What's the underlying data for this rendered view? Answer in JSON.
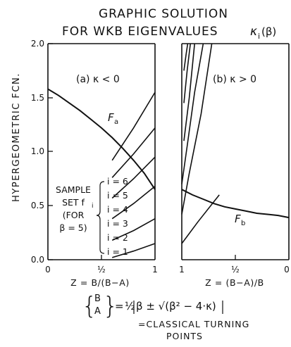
{
  "title": {
    "line1": "GRAPHIC SOLUTION",
    "line2": "FOR WKB EIGENVALUES",
    "kappa_label": "κ",
    "kappa_sub": "i",
    "kappa_arg": "(β)"
  },
  "formula": {
    "lhs_top": "B",
    "lhs_bottom": "A",
    "equals": "=",
    "half": "½",
    "rhs": "β ± √(β² − 4·κ)",
    "caption_line1": "=CLASSICAL TURNING",
    "caption_line2": "POINTS"
  },
  "chart_data": [
    {
      "type": "line",
      "panel_label": "(a) κ < 0",
      "ylabel": "HYPERGEOMETRIC FCN.",
      "xlabel": "Z = B/(B−A)",
      "xlim": [
        0,
        1
      ],
      "ylim": [
        0,
        2.0
      ],
      "x_ticks": [
        "0",
        "½",
        "1"
      ],
      "y_ticks": [
        "0.0",
        "0.5",
        "1.0",
        "1.5",
        "2.0"
      ],
      "grid": false,
      "main_curve": {
        "name": "Fa",
        "label": "F",
        "label_sub": "a",
        "x": [
          0.0,
          0.1,
          0.2,
          0.3,
          0.4,
          0.5,
          0.6,
          0.7,
          0.8,
          0.9,
          1.0
        ],
        "y": [
          1.58,
          1.52,
          1.45,
          1.38,
          1.3,
          1.22,
          1.13,
          1.03,
          0.92,
          0.8,
          0.65
        ]
      },
      "sample_set": {
        "label_lines": [
          "SAMPLE",
          "SET f",
          "(FOR",
          "β = 5)"
        ],
        "label_sub": "i",
        "series": [
          {
            "name": "i = 1",
            "x": [
              0.6,
              0.8,
              1.0
            ],
            "y": [
              0.02,
              0.08,
              0.15
            ]
          },
          {
            "name": "i = 2",
            "x": [
              0.6,
              0.8,
              1.0
            ],
            "y": [
              0.18,
              0.27,
              0.38
            ]
          },
          {
            "name": "i = 3",
            "x": [
              0.6,
              0.8,
              1.0
            ],
            "y": [
              0.38,
              0.52,
              0.68
            ]
          },
          {
            "name": "i = 4",
            "x": [
              0.6,
              0.8,
              1.0
            ],
            "y": [
              0.57,
              0.75,
              0.95
            ]
          },
          {
            "name": "i = 5",
            "x": [
              0.6,
              0.8,
              1.0
            ],
            "y": [
              0.76,
              0.98,
              1.22
            ]
          },
          {
            "name": "i = 6",
            "x": [
              0.6,
              0.8,
              1.0
            ],
            "y": [
              0.92,
              1.22,
              1.55
            ]
          }
        ]
      }
    },
    {
      "type": "line",
      "panel_label": "(b) κ > 0",
      "xlabel": "Z = (B−A)/B",
      "xlim": [
        1,
        0
      ],
      "ylim": [
        0,
        2.0
      ],
      "x_ticks": [
        "1",
        "½",
        "0"
      ],
      "grid": false,
      "main_curve": {
        "name": "Fb",
        "label": "F",
        "label_sub": "b",
        "x": [
          1.0,
          0.9,
          0.8,
          0.7,
          0.6,
          0.5,
          0.4,
          0.3,
          0.2,
          0.1,
          0.0
        ],
        "y": [
          0.65,
          0.6,
          0.56,
          0.52,
          0.49,
          0.47,
          0.45,
          0.43,
          0.42,
          0.41,
          0.39
        ]
      },
      "series": [
        {
          "x": [
            1.0,
            0.85,
            0.65
          ],
          "y": [
            0.15,
            0.35,
            0.6
          ]
        },
        {
          "x": [
            1.0,
            0.93,
            0.82,
            0.72
          ],
          "y": [
            0.42,
            0.8,
            1.35,
            2.0
          ]
        },
        {
          "x": [
            1.0,
            0.95,
            0.88,
            0.8
          ],
          "y": [
            0.7,
            1.05,
            1.55,
            2.0
          ]
        },
        {
          "x": [
            0.98,
            0.93,
            0.88
          ],
          "y": [
            1.1,
            1.5,
            2.0
          ]
        },
        {
          "x": [
            0.98,
            0.95,
            0.92
          ],
          "y": [
            1.45,
            1.75,
            2.0
          ]
        },
        {
          "x": [
            0.98,
            0.96,
            0.945
          ],
          "y": [
            1.75,
            1.9,
            2.0
          ]
        }
      ]
    }
  ]
}
